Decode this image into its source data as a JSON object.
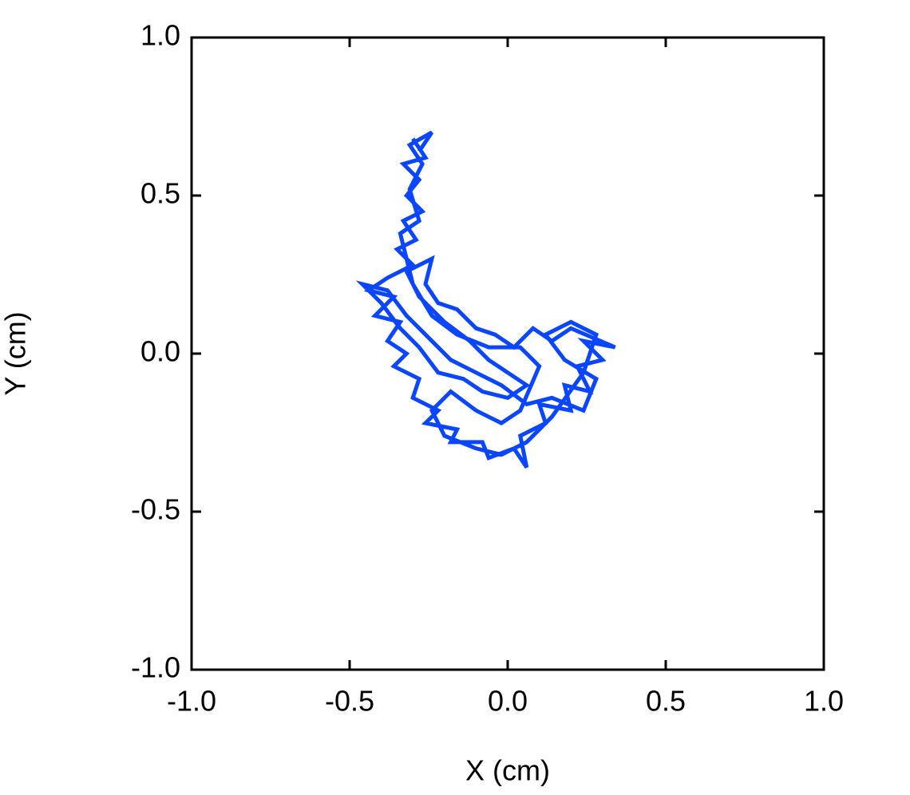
{
  "chart_data": {
    "type": "line",
    "x_label": "X (cm)",
    "y_label": "Y (cm)",
    "color": "#0a46ff",
    "xlim": [
      -1,
      1
    ],
    "ylim": [
      -1,
      1
    ],
    "xticks": [
      {
        "value": -1,
        "label": "-1.0"
      },
      -0.5,
      {
        "value": 0,
        "label": "0.0"
      },
      0.5,
      {
        "value": 1,
        "label": "1.0"
      }
    ],
    "yticks": [
      {
        "value": -1,
        "label": "-1.0"
      },
      -0.5,
      {
        "value": 0,
        "label": "0.0"
      },
      0.5,
      {
        "value": 1,
        "label": "1.0"
      }
    ],
    "x": [
      -0.3,
      -0.26,
      -0.33,
      -0.28,
      -0.32,
      -0.27,
      -0.33,
      -0.29,
      -0.35,
      -0.3,
      -0.38,
      -0.44,
      -0.36,
      -0.42,
      -0.34,
      -0.38,
      -0.32,
      -0.36,
      -0.28,
      -0.3,
      -0.22,
      -0.26,
      -0.16,
      -0.18,
      -0.08,
      -0.06,
      0.02,
      0.06,
      0.04,
      0.12,
      0.1,
      0.2,
      0.18,
      0.26,
      0.22,
      0.3,
      0.24,
      0.34,
      0.2,
      0.14,
      0.08,
      0.02,
      -0.04,
      -0.1,
      -0.16,
      -0.22,
      -0.26,
      -0.24,
      -0.32,
      -0.28,
      -0.2,
      -0.12,
      -0.06,
      0.0,
      0.06,
      0.0,
      -0.08,
      -0.14,
      -0.22,
      -0.28,
      -0.34,
      -0.4,
      -0.46,
      -0.38,
      -0.32,
      -0.26,
      -0.18,
      -0.1,
      -0.02,
      0.06,
      0.14,
      0.24,
      0.28,
      0.18,
      0.12,
      0.2,
      0.28,
      0.24,
      0.14,
      0.06,
      -0.02,
      -0.1,
      -0.2,
      -0.24,
      -0.18,
      -0.1,
      -0.02,
      0.04,
      0.1,
      0.04,
      -0.06,
      -0.16,
      -0.24,
      -0.3,
      -0.34,
      -0.28,
      -0.31,
      -0.27,
      -0.31,
      -0.24,
      -0.28
    ],
    "values": [
      0.68,
      0.62,
      0.6,
      0.55,
      0.5,
      0.45,
      0.42,
      0.36,
      0.33,
      0.28,
      0.24,
      0.2,
      0.18,
      0.12,
      0.1,
      0.04,
      0.0,
      -0.04,
      -0.08,
      -0.14,
      -0.18,
      -0.22,
      -0.24,
      -0.28,
      -0.28,
      -0.33,
      -0.3,
      -0.36,
      -0.26,
      -0.22,
      -0.16,
      -0.18,
      -0.1,
      -0.12,
      -0.04,
      -0.02,
      0.04,
      0.02,
      0.08,
      0.04,
      0.08,
      0.02,
      0.06,
      0.08,
      0.14,
      0.16,
      0.22,
      0.3,
      0.26,
      0.18,
      0.1,
      0.04,
      -0.02,
      -0.06,
      -0.1,
      -0.14,
      -0.12,
      -0.08,
      -0.06,
      0.02,
      0.08,
      0.16,
      0.22,
      0.2,
      0.12,
      0.06,
      -0.02,
      -0.06,
      -0.1,
      -0.16,
      -0.14,
      -0.18,
      -0.08,
      -0.02,
      0.06,
      0.1,
      0.06,
      -0.06,
      -0.2,
      -0.28,
      -0.32,
      -0.3,
      -0.26,
      -0.18,
      -0.12,
      -0.18,
      -0.22,
      -0.18,
      -0.04,
      0.02,
      0.02,
      0.06,
      0.12,
      0.22,
      0.38,
      0.42,
      0.52,
      0.6,
      0.66,
      0.7,
      0.64
    ]
  }
}
